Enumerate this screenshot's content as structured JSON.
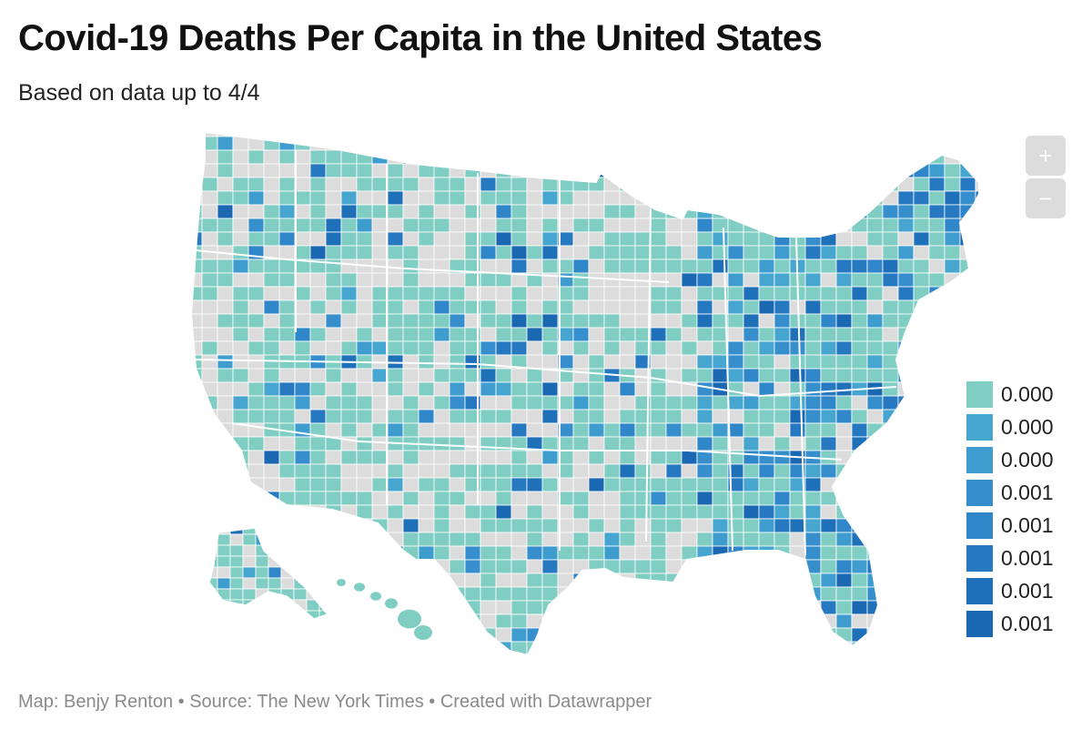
{
  "header": {
    "title": "Covid-19 Deaths Per Capita in the United States",
    "subtitle": "Based on data up to 4/4"
  },
  "zoom": {
    "in_label": "+",
    "out_label": "−"
  },
  "colors": {
    "no_data": "#dcdcdc",
    "borders": "#ffffff",
    "scale": [
      "#7fcdc3",
      "#47a6cf",
      "#3e9ccf",
      "#368fcc",
      "#2f86c8",
      "#2679c0",
      "#1e70b9",
      "#1a67b2"
    ]
  },
  "legend": {
    "items": [
      {
        "label": "0.000",
        "color": "#7fcdc3"
      },
      {
        "label": "0.000",
        "color": "#47a6cf"
      },
      {
        "label": "0.000",
        "color": "#3e9ccf"
      },
      {
        "label": "0.001",
        "color": "#368fcc"
      },
      {
        "label": "0.001",
        "color": "#2f86c8"
      },
      {
        "label": "0.001",
        "color": "#2679c0"
      },
      {
        "label": "0.001",
        "color": "#1e70b9"
      },
      {
        "label": "0.001",
        "color": "#1a67b2"
      }
    ]
  },
  "map": {
    "type": "choropleth",
    "geography": "US counties",
    "regions": [
      "Contiguous United States",
      "Alaska",
      "Hawaii"
    ]
  },
  "footer": {
    "credit": "Map: Benjy Renton • Source: The New York Times • Created with Datawrapper"
  }
}
